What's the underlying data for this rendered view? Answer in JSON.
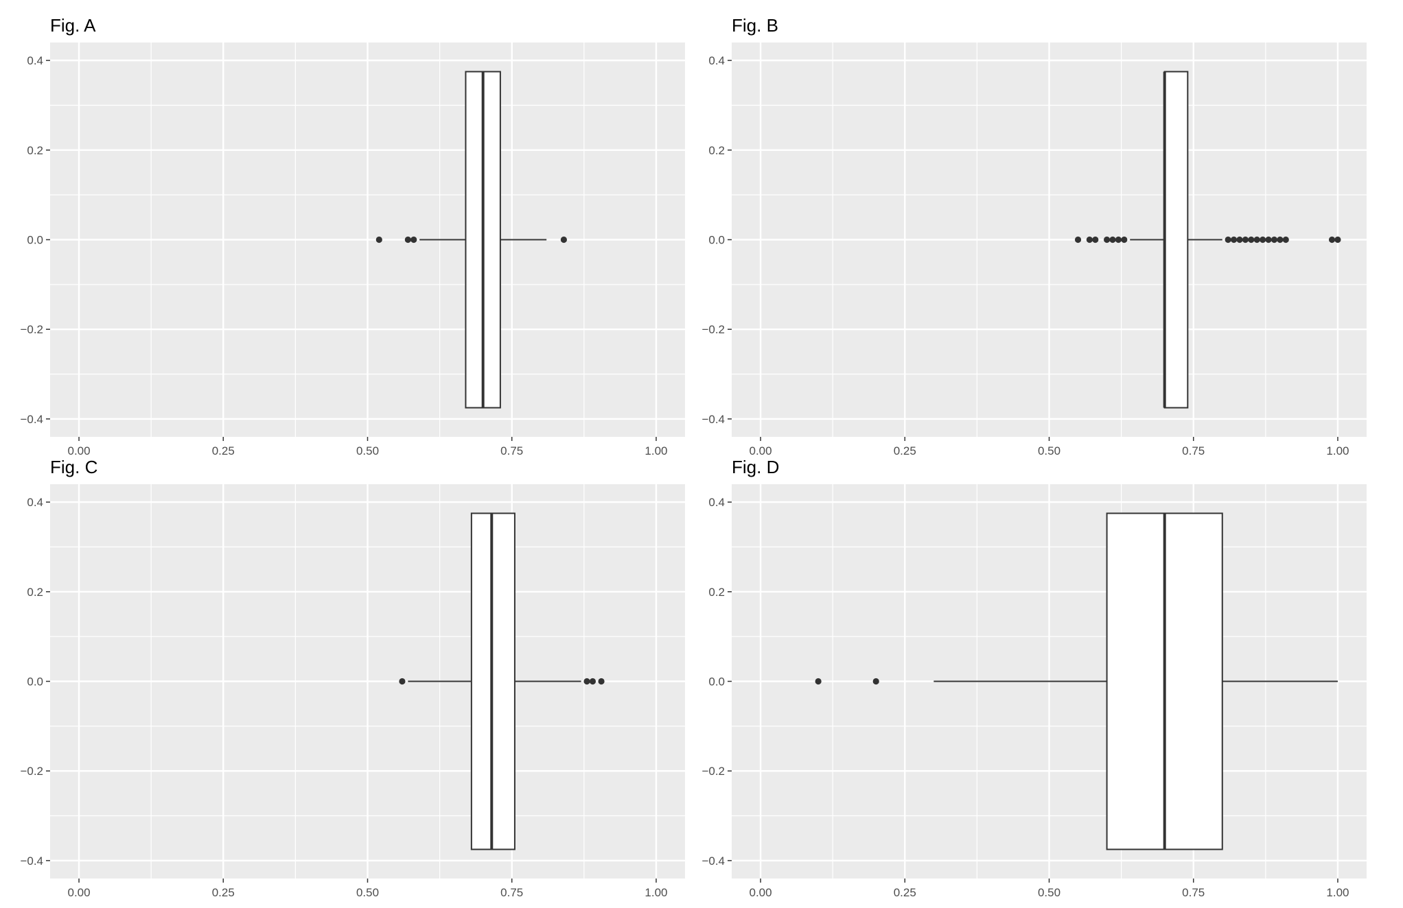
{
  "page": {
    "background": "#ffffff",
    "panel_background": "#ebebeb",
    "grid_color": "#ffffff",
    "tick_label_color": "#4d4d4d",
    "box_fill": "#ffffff",
    "line_color": "#333333",
    "point_color": "#333333",
    "title_color": "#000000"
  },
  "chart_data": [
    {
      "type": "boxplot",
      "orientation": "horizontal",
      "title": "Fig. A",
      "xlabel": "",
      "ylabel": "",
      "xlim": [
        0,
        1
      ],
      "ylim": [
        -0.4,
        0.4
      ],
      "x_ticks": [
        0,
        0.25,
        0.5,
        0.75,
        1
      ],
      "x_tick_labels": [
        "0.00",
        "0.25",
        "0.50",
        "0.75",
        "1.00"
      ],
      "y_ticks": [
        -0.4,
        -0.2,
        0,
        0.2,
        0.4
      ],
      "y_tick_labels": [
        "-0.4",
        "-0.2",
        "0.0",
        "0.2",
        "0.4"
      ],
      "grid": true,
      "box": {
        "q1": 0.67,
        "median": 0.7,
        "q3": 0.73,
        "whisker_low": 0.59,
        "whisker_high": 0.81,
        "box_y_range": [
          -0.375,
          0.375
        ],
        "outliers": [
          0.52,
          0.57,
          0.58,
          0.84
        ]
      }
    },
    {
      "type": "boxplot",
      "orientation": "horizontal",
      "title": "Fig. B",
      "xlabel": "",
      "ylabel": "",
      "xlim": [
        0,
        1
      ],
      "ylim": [
        -0.4,
        0.4
      ],
      "x_ticks": [
        0,
        0.25,
        0.5,
        0.75,
        1
      ],
      "x_tick_labels": [
        "0.00",
        "0.25",
        "0.50",
        "0.75",
        "1.00"
      ],
      "y_ticks": [
        -0.4,
        -0.2,
        0,
        0.2,
        0.4
      ],
      "y_tick_labels": [
        "-0.4",
        "-0.2",
        "0.0",
        "0.2",
        "0.4"
      ],
      "grid": true,
      "box": {
        "q1": 0.7,
        "median": 0.7,
        "q3": 0.74,
        "whisker_low": 0.64,
        "whisker_high": 0.8,
        "box_y_range": [
          -0.375,
          0.375
        ],
        "outliers": [
          0.55,
          0.57,
          0.58,
          0.6,
          0.61,
          0.62,
          0.63,
          0.81,
          0.82,
          0.83,
          0.84,
          0.85,
          0.86,
          0.87,
          0.88,
          0.89,
          0.9,
          0.91,
          0.99,
          1.0
        ]
      }
    },
    {
      "type": "boxplot",
      "orientation": "horizontal",
      "title": "Fig. C",
      "xlabel": "",
      "ylabel": "",
      "xlim": [
        0,
        1
      ],
      "ylim": [
        -0.4,
        0.4
      ],
      "x_ticks": [
        0,
        0.25,
        0.5,
        0.75,
        1
      ],
      "x_tick_labels": [
        "0.00",
        "0.25",
        "0.50",
        "0.75",
        "1.00"
      ],
      "y_ticks": [
        -0.4,
        -0.2,
        0,
        0.2,
        0.4
      ],
      "y_tick_labels": [
        "-0.4",
        "-0.2",
        "0.0",
        "0.2",
        "0.4"
      ],
      "grid": true,
      "box": {
        "q1": 0.68,
        "median": 0.715,
        "q3": 0.755,
        "whisker_low": 0.57,
        "whisker_high": 0.87,
        "box_y_range": [
          -0.375,
          0.375
        ],
        "outliers": [
          0.56,
          0.88,
          0.89,
          0.905
        ]
      }
    },
    {
      "type": "boxplot",
      "orientation": "horizontal",
      "title": "Fig. D",
      "xlabel": "",
      "ylabel": "",
      "xlim": [
        0,
        1
      ],
      "ylim": [
        -0.4,
        0.4
      ],
      "x_ticks": [
        0,
        0.25,
        0.5,
        0.75,
        1
      ],
      "x_tick_labels": [
        "0.00",
        "0.25",
        "0.50",
        "0.75",
        "1.00"
      ],
      "y_ticks": [
        -0.4,
        -0.2,
        0,
        0.2,
        0.4
      ],
      "y_tick_labels": [
        "-0.4",
        "-0.2",
        "0.0",
        "0.2",
        "0.4"
      ],
      "grid": true,
      "box": {
        "q1": 0.6,
        "median": 0.7,
        "q3": 0.8,
        "whisker_low": 0.3,
        "whisker_high": 1.0,
        "box_y_range": [
          -0.375,
          0.375
        ],
        "outliers": [
          0.1,
          0.2
        ]
      }
    }
  ]
}
